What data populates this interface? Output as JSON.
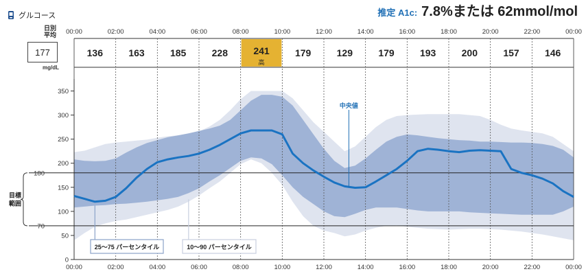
{
  "header": {
    "title": "グルコース",
    "a1c_label": "推定 A1c:",
    "a1c_value": "7.8%または 62mmol/mol"
  },
  "daily_average": {
    "label_line1": "日別",
    "label_line2": "平均",
    "value": "177",
    "unit": "mg/dL"
  },
  "colors": {
    "median": "#1a73c2",
    "iqr_band": "#9fb3d6",
    "outer_band": "#dfe4ef",
    "highlight": "#e5b232",
    "annotation": "#1f6fb5"
  },
  "chart_data": {
    "type": "area",
    "title": "グルコース",
    "ylabel": "mg/dL",
    "xlabel": "",
    "ylim": [
      0,
      375
    ],
    "xlim": [
      0,
      24
    ],
    "x_ticks": [
      "00:00",
      "02:00",
      "04:00",
      "06:00",
      "08:00",
      "10:00",
      "12:00",
      "14:00",
      "16:00",
      "18:00",
      "20:00",
      "22:00",
      "00:00"
    ],
    "y_ticks": [
      0,
      50,
      100,
      150,
      200,
      250,
      300,
      350
    ],
    "target_range": {
      "low": 70,
      "high": 180,
      "label_line1": "目標",
      "label_line2": "範囲",
      "low_label": "70",
      "high_label": "180"
    },
    "hourly_averages": [
      {
        "value": "136",
        "note": ""
      },
      {
        "value": "163",
        "note": ""
      },
      {
        "value": "185",
        "note": ""
      },
      {
        "value": "228",
        "note": ""
      },
      {
        "value": "241",
        "note": "高",
        "highlight": true
      },
      {
        "value": "179",
        "note": ""
      },
      {
        "value": "129",
        "note": ""
      },
      {
        "value": "179",
        "note": ""
      },
      {
        "value": "193",
        "note": ""
      },
      {
        "value": "200",
        "note": ""
      },
      {
        "value": "157",
        "note": ""
      },
      {
        "value": "146",
        "note": ""
      }
    ],
    "x": [
      0,
      0.5,
      1,
      1.5,
      2,
      2.5,
      3,
      3.5,
      4,
      4.5,
      5,
      5.5,
      6,
      6.5,
      7,
      7.5,
      8,
      8.5,
      9,
      9.5,
      10,
      10.5,
      11,
      11.5,
      12,
      12.5,
      13,
      13.5,
      14,
      14.5,
      15,
      15.5,
      16,
      16.5,
      17,
      17.5,
      18,
      18.5,
      19,
      19.5,
      20,
      20.5,
      21,
      21.5,
      22,
      22.5,
      23,
      23.5,
      24
    ],
    "series": [
      {
        "name": "p90",
        "values": [
          223,
          226,
          233,
          240,
          243,
          245,
          247,
          249,
          253,
          256,
          258,
          261,
          266,
          276,
          290,
          310,
          333,
          350,
          350,
          350,
          350,
          335,
          310,
          285,
          265,
          245,
          225,
          235,
          255,
          275,
          290,
          298,
          300,
          301,
          302,
          302,
          302,
          302,
          300,
          298,
          290,
          280,
          272,
          268,
          265,
          262,
          255,
          240,
          225
        ]
      },
      {
        "name": "p75",
        "values": [
          208,
          205,
          204,
          205,
          210,
          222,
          233,
          242,
          248,
          254,
          258,
          262,
          267,
          272,
          278,
          290,
          310,
          330,
          342,
          342,
          338,
          320,
          290,
          260,
          230,
          205,
          190,
          195,
          210,
          228,
          245,
          255,
          260,
          258,
          255,
          252,
          250,
          248,
          247,
          245,
          245,
          244,
          243,
          243,
          242,
          240,
          236,
          228,
          212
        ]
      },
      {
        "name": "median",
        "values": [
          132,
          126,
          120,
          122,
          130,
          148,
          170,
          188,
          202,
          208,
          212,
          215,
          220,
          228,
          238,
          250,
          262,
          268,
          268,
          268,
          260,
          220,
          200,
          185,
          172,
          160,
          152,
          149,
          150,
          162,
          175,
          188,
          205,
          225,
          230,
          228,
          225,
          223,
          226,
          227,
          226,
          225,
          188,
          180,
          175,
          168,
          158,
          142,
          130
        ]
      },
      {
        "name": "p25",
        "values": [
          108,
          110,
          112,
          113,
          115,
          116,
          118,
          120,
          123,
          126,
          130,
          138,
          148,
          162,
          175,
          190,
          205,
          212,
          210,
          198,
          175,
          150,
          130,
          115,
          100,
          90,
          88,
          95,
          103,
          108,
          108,
          108,
          105,
          102,
          100,
          100,
          100,
          100,
          98,
          97,
          96,
          95,
          94,
          93,
          93,
          93,
          93,
          100,
          110
        ]
      },
      {
        "name": "p10",
        "values": [
          40,
          55,
          68,
          75,
          80,
          83,
          88,
          93,
          98,
          103,
          110,
          120,
          133,
          148,
          162,
          180,
          198,
          208,
          200,
          180,
          155,
          120,
          90,
          70,
          60,
          55,
          48,
          52,
          60,
          66,
          70,
          71,
          68,
          66,
          64,
          63,
          62,
          63,
          64,
          64,
          63,
          62,
          60,
          58,
          55,
          52,
          48,
          44,
          40
        ]
      }
    ],
    "annotations": {
      "median_label": "中央値",
      "iqr_label": "25～75 パーセンタイル",
      "outer_label": "10～90 パーセンタイル"
    }
  }
}
